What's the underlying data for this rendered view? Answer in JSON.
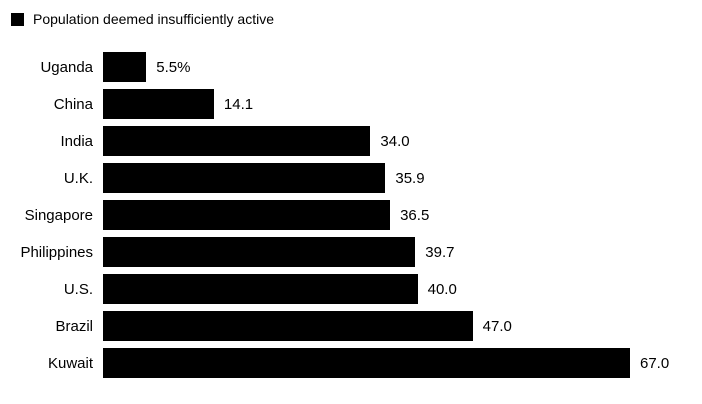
{
  "legend": {
    "label": "Population deemed insufficiently active",
    "swatch_color": "#000000"
  },
  "chart_data": {
    "type": "bar",
    "orientation": "horizontal",
    "title": "Population deemed insufficiently active",
    "categories": [
      "Uganda",
      "China",
      "India",
      "U.K.",
      "Singapore",
      "Philippines",
      "U.S.",
      "Brazil",
      "Kuwait"
    ],
    "values": [
      5.5,
      14.1,
      34.0,
      35.9,
      36.5,
      39.7,
      40.0,
      47.0,
      67.0
    ],
    "value_labels": [
      "5.5%",
      "14.1",
      "34.0",
      "35.9",
      "36.5",
      "39.7",
      "40.0",
      "47.0",
      "67.0"
    ],
    "unit": "%",
    "xlim": [
      0,
      67
    ],
    "bar_color": "#000000",
    "grid": false,
    "legend_position": "top-left"
  }
}
